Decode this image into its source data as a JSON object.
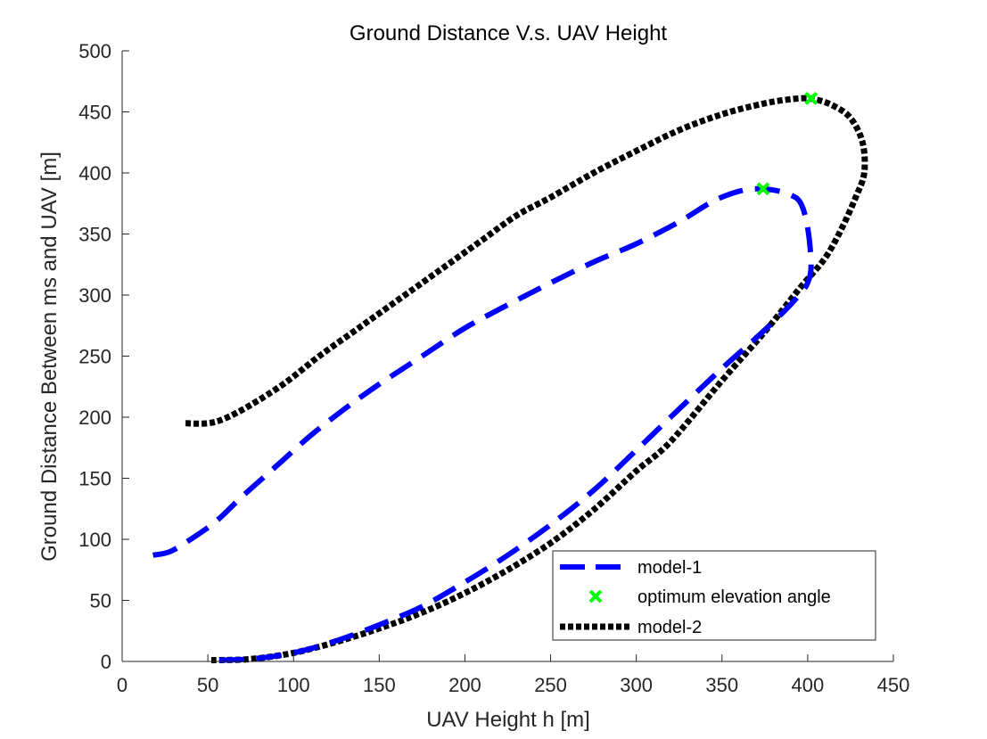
{
  "chart_data": {
    "type": "line",
    "title": "Ground Distance V.s. UAV  Height",
    "xlabel": "UAV Height h [m]",
    "ylabel": "Ground Distance Between ms and UAV [m]",
    "xlim": [
      0,
      450
    ],
    "ylim": [
      0,
      500
    ],
    "xticks": [
      0,
      50,
      100,
      150,
      200,
      250,
      300,
      350,
      400,
      450
    ],
    "yticks": [
      0,
      50,
      100,
      150,
      200,
      250,
      300,
      350,
      400,
      450,
      500
    ],
    "grid": false,
    "legend_position": "bottom-right",
    "series": [
      {
        "name": "model-1",
        "style": "dashed",
        "color": "#0000ff",
        "x": [
          18,
          28,
          40,
          55,
          70,
          90,
          110,
          130,
          150,
          175,
          200,
          225,
          250,
          275,
          300,
          325,
          345,
          360,
          370,
          380,
          390,
          396,
          400,
          402,
          400,
          395,
          385,
          370,
          350,
          320,
          300,
          275,
          250,
          225,
          200,
          175,
          150,
          125,
          100,
          75,
          52
        ],
        "y": [
          87,
          90,
          100,
          115,
          135,
          160,
          185,
          207,
          227,
          250,
          273,
          292,
          310,
          327,
          342,
          360,
          377,
          385,
          387,
          386,
          382,
          375,
          355,
          325,
          310,
          300,
          285,
          265,
          240,
          200,
          173,
          140,
          112,
          87,
          65,
          45,
          30,
          17,
          7,
          2,
          1
        ]
      },
      {
        "name": "optimum elevation angle",
        "style": "markers",
        "color": "#00ff00",
        "marker": "x",
        "x": [
          374,
          402
        ],
        "y": [
          387,
          461
        ]
      },
      {
        "name": "model-2",
        "style": "dotted",
        "color": "#000000",
        "x": [
          37,
          50,
          60,
          75,
          95,
          115,
          135,
          150,
          170,
          190,
          210,
          230,
          250,
          275,
          300,
          325,
          350,
          375,
          395,
          405,
          415,
          425,
          432,
          433,
          428,
          420,
          410,
          395,
          375,
          350,
          320,
          300,
          275,
          250,
          225,
          200,
          175,
          150,
          125,
          100,
          75,
          52
        ],
        "y": [
          195,
          195,
          199,
          210,
          228,
          250,
          270,
          285,
          305,
          325,
          345,
          365,
          380,
          400,
          418,
          435,
          448,
          457,
          461,
          460,
          455,
          445,
          425,
          400,
          380,
          355,
          330,
          305,
          270,
          230,
          180,
          156,
          124,
          97,
          75,
          56,
          40,
          27,
          16,
          7,
          2,
          1
        ]
      }
    ]
  }
}
